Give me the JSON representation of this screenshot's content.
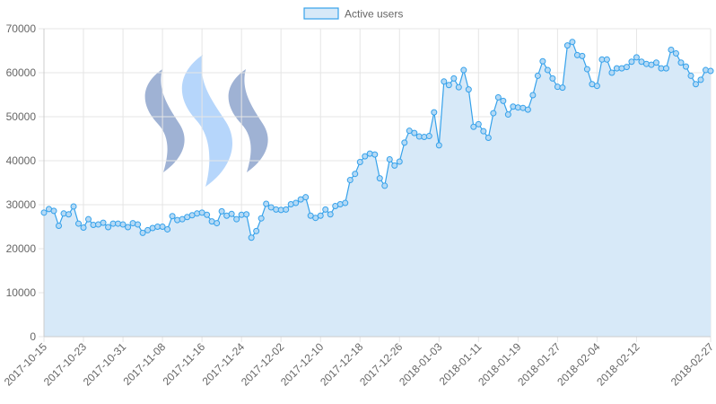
{
  "chart_data": {
    "type": "area",
    "title": "",
    "xlabel": "",
    "ylabel": "",
    "legend": {
      "position": "top",
      "label": "Active users"
    },
    "grid": true,
    "ylim": [
      0,
      70000
    ],
    "y_ticks": [
      "0",
      "10000",
      "20000",
      "30000",
      "40000",
      "50000",
      "60000",
      "70000"
    ],
    "x_tick_labels": [
      "2017-10-15",
      "2017-10-23",
      "2017-10-31",
      "2017-11-08",
      "2017-11-16",
      "2017-11-24",
      "2017-12-02",
      "2017-12-10",
      "2017-12-18",
      "2017-12-26",
      "2018-01-03",
      "2018-01-11",
      "2018-01-19",
      "2018-01-27",
      "2018-02-04",
      "2018-02-12",
      "2018-02-27"
    ],
    "colors": {
      "line": "#36a2eb",
      "fill": "#d7e9f8",
      "point_fill": "#b4d9f5"
    },
    "logo": {
      "name": "steem-logo",
      "colors": [
        "#9aaed2",
        "#b3d4fb"
      ]
    },
    "series": [
      {
        "name": "Active users",
        "x": [
          "2017-10-15",
          "2017-10-16",
          "2017-10-17",
          "2017-10-18",
          "2017-10-19",
          "2017-10-20",
          "2017-10-21",
          "2017-10-22",
          "2017-10-23",
          "2017-10-24",
          "2017-10-25",
          "2017-10-26",
          "2017-10-27",
          "2017-10-28",
          "2017-10-29",
          "2017-10-30",
          "2017-10-31",
          "2017-11-01",
          "2017-11-02",
          "2017-11-03",
          "2017-11-04",
          "2017-11-05",
          "2017-11-06",
          "2017-11-07",
          "2017-11-08",
          "2017-11-09",
          "2017-11-10",
          "2017-11-11",
          "2017-11-12",
          "2017-11-13",
          "2017-11-14",
          "2017-11-15",
          "2017-11-16",
          "2017-11-17",
          "2017-11-18",
          "2017-11-19",
          "2017-11-20",
          "2017-11-21",
          "2017-11-22",
          "2017-11-23",
          "2017-11-24",
          "2017-11-25",
          "2017-11-26",
          "2017-11-27",
          "2017-11-28",
          "2017-11-29",
          "2017-11-30",
          "2017-12-01",
          "2017-12-02",
          "2017-12-03",
          "2017-12-04",
          "2017-12-05",
          "2017-12-06",
          "2017-12-07",
          "2017-12-08",
          "2017-12-09",
          "2017-12-10",
          "2017-12-11",
          "2017-12-12",
          "2017-12-13",
          "2017-12-14",
          "2017-12-15",
          "2017-12-16",
          "2017-12-17",
          "2017-12-18",
          "2017-12-19",
          "2017-12-20",
          "2017-12-21",
          "2017-12-22",
          "2017-12-23",
          "2017-12-24",
          "2017-12-25",
          "2017-12-26",
          "2017-12-27",
          "2017-12-28",
          "2017-12-29",
          "2017-12-30",
          "2017-12-31",
          "2018-01-01",
          "2018-01-02",
          "2018-01-03",
          "2018-01-04",
          "2018-01-05",
          "2018-01-06",
          "2018-01-07",
          "2018-01-08",
          "2018-01-09",
          "2018-01-10",
          "2018-01-11",
          "2018-01-12",
          "2018-01-13",
          "2018-01-14",
          "2018-01-15",
          "2018-01-16",
          "2018-01-17",
          "2018-01-18",
          "2018-01-19",
          "2018-01-20",
          "2018-01-21",
          "2018-01-22",
          "2018-01-23",
          "2018-01-24",
          "2018-01-25",
          "2018-01-26",
          "2018-01-27",
          "2018-01-28",
          "2018-01-29",
          "2018-01-30",
          "2018-01-31",
          "2018-02-01",
          "2018-02-02",
          "2018-02-03",
          "2018-02-04",
          "2018-02-05",
          "2018-02-06",
          "2018-02-07",
          "2018-02-08",
          "2018-02-09",
          "2018-02-10",
          "2018-02-11",
          "2018-02-12",
          "2018-02-13",
          "2018-02-14",
          "2018-02-15",
          "2018-02-16",
          "2018-02-17",
          "2018-02-18",
          "2018-02-19",
          "2018-02-20",
          "2018-02-21",
          "2018-02-22",
          "2018-02-23",
          "2018-02-24",
          "2018-02-25",
          "2018-02-26",
          "2018-02-27"
        ],
        "values": [
          28200,
          29000,
          28600,
          25200,
          28000,
          27800,
          29600,
          25700,
          24800,
          26700,
          25400,
          25500,
          25900,
          24900,
          25700,
          25700,
          25500,
          24900,
          25800,
          25500,
          23600,
          24200,
          24700,
          25000,
          25000,
          24400,
          27400,
          26500,
          26700,
          27200,
          27600,
          28000,
          28200,
          27700,
          26200,
          25800,
          28500,
          27500,
          27900,
          26700,
          27700,
          27800,
          22500,
          24000,
          26900,
          30200,
          29400,
          28900,
          28800,
          28900,
          30100,
          30400,
          31200,
          31700,
          27500,
          27000,
          27500,
          28900,
          27800,
          29700,
          30100,
          30400,
          35600,
          37000,
          39700,
          41000,
          41600,
          41400,
          36000,
          34300,
          40300,
          38900,
          39800,
          44100,
          46800,
          46300,
          45500,
          45400,
          45600,
          51000,
          43500,
          58000,
          57200,
          58700,
          56700,
          60600,
          56200,
          47700,
          48300,
          46700,
          45200,
          50800,
          54400,
          53600,
          50500,
          52300,
          52100,
          52000,
          51600,
          54900,
          59300,
          62600,
          60600,
          58700,
          56800,
          56600,
          66200,
          67000,
          64000,
          63800,
          60800,
          57400,
          57000,
          63000,
          63000,
          60000,
          61000,
          61000,
          61300,
          62500,
          63500,
          62500,
          62000,
          61800,
          62300,
          61000,
          61000,
          65200,
          64400,
          62300,
          61400,
          59300,
          57400,
          58400,
          60600,
          60400
        ]
      }
    ]
  }
}
